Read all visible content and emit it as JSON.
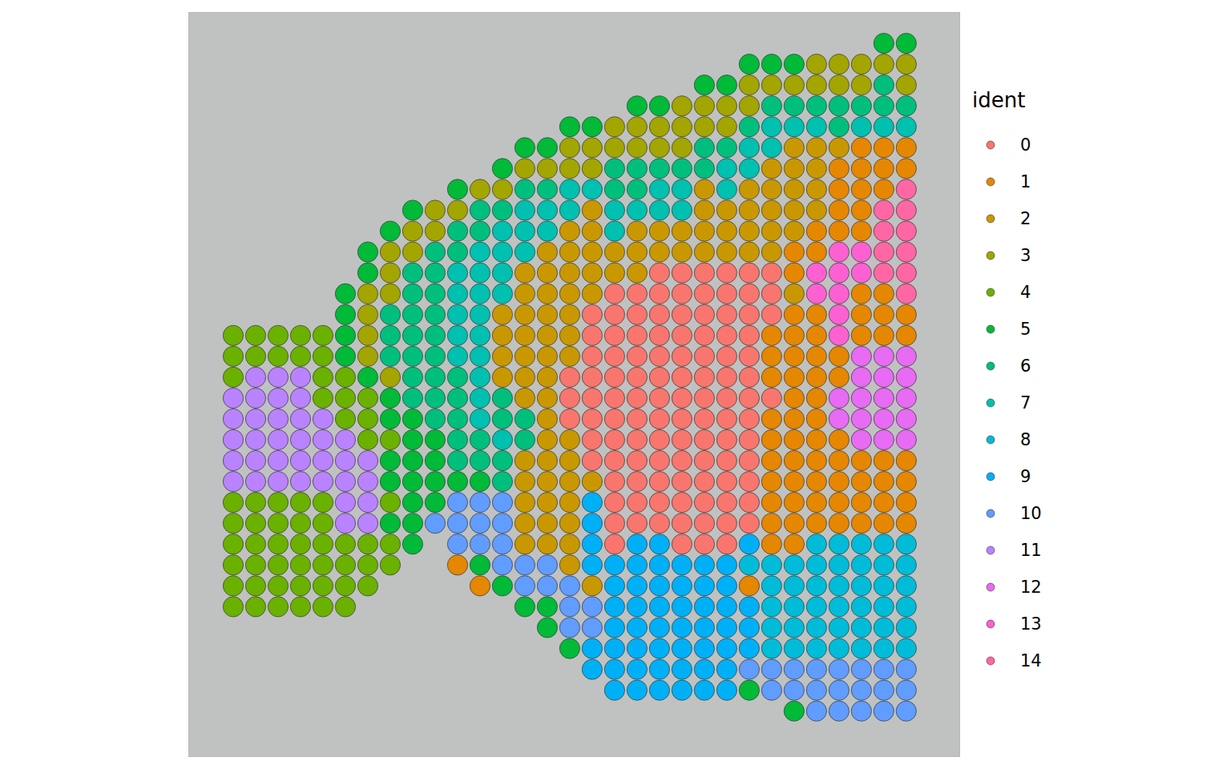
{
  "chart_data": {
    "type": "scatter",
    "legend_title": "ident",
    "marker": "circle",
    "tick_labels": false,
    "xlim": [
      -2,
      32.4
    ],
    "ylim": [
      -1.5,
      34.2
    ],
    "xticks": [],
    "yticks": [],
    "series": [
      {
        "name": "0",
        "color": "#F8766D"
      },
      {
        "name": "1",
        "color": "#E58700"
      },
      {
        "name": "2",
        "color": "#C99800"
      },
      {
        "name": "3",
        "color": "#A3A500"
      },
      {
        "name": "4",
        "color": "#6BB100"
      },
      {
        "name": "5",
        "color": "#00BA38"
      },
      {
        "name": "6",
        "color": "#00BF7D"
      },
      {
        "name": "7",
        "color": "#00C0AF"
      },
      {
        "name": "8",
        "color": "#00BCD8"
      },
      {
        "name": "9",
        "color": "#00B0F6"
      },
      {
        "name": "10",
        "color": "#619CFF"
      },
      {
        "name": "11",
        "color": "#B983FF"
      },
      {
        "name": "12",
        "color": "#E76BF3"
      },
      {
        "name": "13",
        "color": "#FD61D1"
      },
      {
        "name": "14",
        "color": "#FF67A4"
      }
    ],
    "spots": [
      [
        null,
        null,
        null,
        null,
        null,
        null,
        null,
        null,
        null,
        null,
        null,
        null,
        null,
        null,
        null,
        null,
        null,
        null,
        null,
        null,
        null,
        null,
        null,
        null,
        null,
        null,
        null,
        null,
        null,
        5,
        5
      ],
      [
        null,
        null,
        null,
        null,
        null,
        null,
        null,
        null,
        null,
        null,
        null,
        null,
        null,
        null,
        null,
        null,
        null,
        null,
        null,
        null,
        null,
        null,
        null,
        5,
        5,
        5,
        3,
        3,
        3,
        3,
        3
      ],
      [
        null,
        null,
        null,
        null,
        null,
        null,
        null,
        null,
        null,
        null,
        null,
        null,
        null,
        null,
        null,
        null,
        null,
        null,
        null,
        null,
        null,
        5,
        5,
        3,
        3,
        3,
        3,
        3,
        3,
        6,
        3
      ],
      [
        null,
        null,
        null,
        null,
        null,
        null,
        null,
        null,
        null,
        null,
        null,
        null,
        null,
        null,
        null,
        null,
        null,
        null,
        5,
        5,
        3,
        3,
        3,
        3,
        6,
        6,
        6,
        6,
        6,
        6,
        6
      ],
      [
        null,
        null,
        null,
        null,
        null,
        null,
        null,
        null,
        null,
        null,
        null,
        null,
        null,
        null,
        null,
        5,
        5,
        3,
        3,
        3,
        3,
        3,
        3,
        6,
        7,
        7,
        7,
        6,
        7,
        7,
        7
      ],
      [
        null,
        null,
        null,
        null,
        null,
        null,
        null,
        null,
        null,
        null,
        null,
        null,
        null,
        5,
        5,
        3,
        3,
        3,
        3,
        3,
        3,
        6,
        6,
        7,
        7,
        2,
        2,
        2,
        1,
        1,
        1
      ],
      [
        null,
        null,
        null,
        null,
        null,
        null,
        null,
        null,
        null,
        null,
        null,
        null,
        5,
        3,
        3,
        3,
        3,
        6,
        6,
        6,
        6,
        6,
        7,
        7,
        2,
        2,
        2,
        1,
        1,
        1,
        1
      ],
      [
        null,
        null,
        null,
        null,
        null,
        null,
        null,
        null,
        null,
        null,
        5,
        3,
        3,
        6,
        6,
        7,
        7,
        6,
        6,
        7,
        7,
        2,
        7,
        2,
        2,
        2,
        2,
        1,
        1,
        1,
        14
      ],
      [
        null,
        null,
        null,
        null,
        null,
        null,
        null,
        null,
        5,
        3,
        3,
        6,
        6,
        7,
        7,
        7,
        2,
        7,
        7,
        7,
        7,
        2,
        2,
        2,
        2,
        2,
        2,
        1,
        1,
        14,
        14
      ],
      [
        null,
        null,
        null,
        null,
        null,
        null,
        null,
        5,
        3,
        3,
        6,
        6,
        7,
        7,
        7,
        2,
        2,
        7,
        2,
        2,
        2,
        2,
        2,
        2,
        2,
        2,
        1,
        1,
        1,
        14,
        14
      ],
      [
        null,
        null,
        null,
        null,
        null,
        null,
        5,
        3,
        3,
        6,
        6,
        7,
        7,
        7,
        2,
        2,
        2,
        2,
        2,
        2,
        2,
        2,
        2,
        2,
        2,
        1,
        1,
        13,
        13,
        14,
        14
      ],
      [
        null,
        null,
        null,
        null,
        null,
        null,
        5,
        3,
        6,
        6,
        7,
        7,
        7,
        2,
        2,
        2,
        2,
        2,
        2,
        0,
        0,
        0,
        0,
        0,
        0,
        1,
        13,
        13,
        13,
        14,
        14
      ],
      [
        null,
        null,
        null,
        null,
        null,
        5,
        3,
        3,
        6,
        6,
        7,
        7,
        7,
        2,
        2,
        2,
        2,
        0,
        0,
        0,
        0,
        0,
        0,
        0,
        0,
        2,
        13,
        13,
        1,
        1,
        14
      ],
      [
        null,
        null,
        null,
        null,
        null,
        5,
        3,
        6,
        6,
        6,
        7,
        7,
        2,
        2,
        2,
        2,
        0,
        0,
        0,
        0,
        0,
        0,
        0,
        0,
        0,
        1,
        1,
        13,
        1,
        1,
        1
      ],
      [
        4,
        4,
        4,
        4,
        4,
        5,
        3,
        6,
        6,
        6,
        7,
        7,
        2,
        2,
        2,
        2,
        0,
        0,
        0,
        0,
        0,
        0,
        0,
        0,
        1,
        1,
        1,
        13,
        1,
        1,
        1
      ],
      [
        4,
        4,
        4,
        4,
        4,
        5,
        3,
        6,
        6,
        6,
        7,
        7,
        2,
        2,
        2,
        2,
        0,
        0,
        0,
        0,
        0,
        0,
        0,
        0,
        1,
        1,
        1,
        1,
        12,
        12,
        12
      ],
      [
        4,
        11,
        11,
        11,
        4,
        4,
        5,
        3,
        6,
        6,
        6,
        7,
        2,
        2,
        2,
        0,
        0,
        0,
        0,
        0,
        0,
        0,
        0,
        0,
        1,
        1,
        1,
        1,
        12,
        12,
        12
      ],
      [
        11,
        11,
        11,
        11,
        4,
        4,
        4,
        5,
        6,
        6,
        6,
        7,
        6,
        2,
        2,
        0,
        0,
        0,
        0,
        0,
        0,
        0,
        0,
        0,
        0,
        1,
        1,
        12,
        12,
        12,
        12
      ],
      [
        11,
        11,
        11,
        11,
        11,
        4,
        4,
        5,
        5,
        6,
        6,
        7,
        6,
        6,
        2,
        0,
        0,
        0,
        0,
        0,
        0,
        0,
        0,
        0,
        1,
        1,
        1,
        12,
        12,
        12,
        12
      ],
      [
        11,
        11,
        11,
        11,
        11,
        11,
        4,
        4,
        5,
        5,
        6,
        6,
        7,
        6,
        2,
        2,
        0,
        0,
        0,
        0,
        0,
        0,
        0,
        0,
        1,
        1,
        1,
        1,
        12,
        12,
        12
      ],
      [
        11,
        11,
        11,
        11,
        11,
        11,
        11,
        5,
        5,
        5,
        6,
        6,
        6,
        2,
        2,
        2,
        0,
        0,
        0,
        0,
        0,
        0,
        0,
        0,
        1,
        1,
        1,
        1,
        1,
        1,
        1
      ],
      [
        11,
        11,
        11,
        11,
        11,
        11,
        11,
        5,
        5,
        5,
        5,
        5,
        6,
        2,
        2,
        2,
        2,
        0,
        0,
        0,
        0,
        0,
        0,
        0,
        1,
        1,
        1,
        1,
        1,
        1,
        1
      ],
      [
        4,
        4,
        4,
        4,
        4,
        11,
        11,
        4,
        5,
        5,
        10,
        10,
        10,
        2,
        2,
        2,
        9,
        0,
        0,
        0,
        0,
        0,
        0,
        0,
        1,
        1,
        1,
        1,
        1,
        1,
        1
      ],
      [
        4,
        4,
        4,
        4,
        4,
        11,
        11,
        5,
        5,
        10,
        10,
        10,
        10,
        2,
        2,
        2,
        9,
        0,
        0,
        0,
        0,
        0,
        0,
        0,
        1,
        1,
        1,
        1,
        1,
        1,
        1
      ],
      [
        4,
        4,
        4,
        4,
        4,
        4,
        4,
        4,
        5,
        null,
        10,
        10,
        10,
        2,
        2,
        2,
        9,
        0,
        9,
        9,
        0,
        0,
        0,
        9,
        1,
        1,
        8,
        8,
        8,
        8,
        8
      ],
      [
        4,
        4,
        4,
        4,
        4,
        4,
        4,
        4,
        null,
        null,
        1,
        5,
        10,
        10,
        10,
        2,
        9,
        9,
        9,
        9,
        9,
        9,
        9,
        8,
        8,
        8,
        8,
        8,
        8,
        8,
        8
      ],
      [
        4,
        4,
        4,
        4,
        4,
        4,
        4,
        null,
        null,
        null,
        null,
        1,
        5,
        10,
        10,
        10,
        2,
        9,
        9,
        9,
        9,
        9,
        9,
        1,
        8,
        8,
        8,
        8,
        8,
        8,
        8
      ],
      [
        4,
        4,
        4,
        4,
        4,
        4,
        null,
        null,
        null,
        null,
        null,
        null,
        null,
        5,
        5,
        10,
        10,
        9,
        9,
        9,
        9,
        9,
        9,
        9,
        8,
        8,
        8,
        8,
        8,
        8,
        8
      ],
      [
        null,
        null,
        null,
        null,
        null,
        null,
        null,
        null,
        null,
        null,
        null,
        null,
        null,
        null,
        5,
        10,
        10,
        9,
        9,
        9,
        9,
        9,
        9,
        9,
        8,
        8,
        8,
        8,
        8,
        8,
        8
      ],
      [
        null,
        null,
        null,
        null,
        null,
        null,
        null,
        null,
        null,
        null,
        null,
        null,
        null,
        null,
        null,
        5,
        9,
        9,
        9,
        9,
        9,
        9,
        9,
        9,
        8,
        8,
        8,
        8,
        8,
        8,
        8
      ],
      [
        null,
        null,
        null,
        null,
        null,
        null,
        null,
        null,
        null,
        null,
        null,
        null,
        null,
        null,
        null,
        null,
        9,
        9,
        9,
        9,
        9,
        9,
        9,
        10,
        10,
        10,
        10,
        10,
        10,
        10,
        10
      ],
      [
        null,
        null,
        null,
        null,
        null,
        null,
        null,
        null,
        null,
        null,
        null,
        null,
        null,
        null,
        null,
        null,
        null,
        9,
        9,
        9,
        9,
        9,
        9,
        5,
        10,
        10,
        10,
        10,
        10,
        10,
        10
      ],
      [
        null,
        null,
        null,
        null,
        null,
        null,
        null,
        null,
        null,
        null,
        null,
        null,
        null,
        null,
        null,
        null,
        null,
        null,
        null,
        null,
        null,
        null,
        null,
        null,
        null,
        5,
        10,
        10,
        10,
        10,
        10
      ]
    ]
  }
}
